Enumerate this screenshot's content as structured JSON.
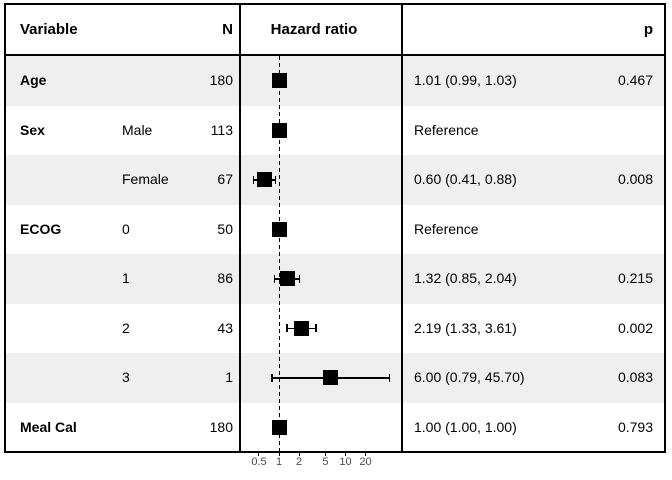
{
  "header": {
    "variable": "Variable",
    "n": "N",
    "hazard_ratio": "Hazard ratio",
    "p": "p"
  },
  "colors": {
    "stripe": "#EFEFEF",
    "box": "#000000",
    "line": "#000000",
    "border": "#000000",
    "axis_text": "#4D4D4D",
    "background": "#FFFFFF"
  },
  "chart_data": {
    "type": "forest",
    "title": "",
    "x_scale": "log",
    "reference_line": 1,
    "axis_ticks": [
      {
        "value": 0.5,
        "label": "0.5"
      },
      {
        "value": 1,
        "label": "1"
      },
      {
        "value": 2,
        "label": "2"
      },
      {
        "value": 5,
        "label": "5"
      },
      {
        "value": 10,
        "label": "10"
      },
      {
        "value": 20,
        "label": "20"
      }
    ],
    "rows": [
      {
        "variable": "Age",
        "level": "",
        "n": "180",
        "hr": 1.01,
        "ci_low": 0.99,
        "ci_high": 1.03,
        "reference": false,
        "estimate": "1.01 (0.99, 1.03)",
        "p": "0.467",
        "shaded": true
      },
      {
        "variable": "Sex",
        "level": "Male",
        "n": "113",
        "hr": 1.0,
        "ci_low": 1.0,
        "ci_high": 1.0,
        "reference": true,
        "estimate": "Reference",
        "p": "",
        "shaded": false
      },
      {
        "variable": "",
        "level": "Female",
        "n": "67",
        "hr": 0.6,
        "ci_low": 0.41,
        "ci_high": 0.88,
        "reference": false,
        "estimate": "0.60 (0.41, 0.88)",
        "p": "0.008",
        "shaded": true
      },
      {
        "variable": "ECOG",
        "level": "0",
        "n": "50",
        "hr": 1.0,
        "ci_low": 1.0,
        "ci_high": 1.0,
        "reference": true,
        "estimate": "Reference",
        "p": "",
        "shaded": false
      },
      {
        "variable": "",
        "level": "1",
        "n": "86",
        "hr": 1.32,
        "ci_low": 0.85,
        "ci_high": 2.04,
        "reference": false,
        "estimate": "1.32 (0.85, 2.04)",
        "p": "0.215",
        "shaded": true
      },
      {
        "variable": "",
        "level": "2",
        "n": "43",
        "hr": 2.19,
        "ci_low": 1.33,
        "ci_high": 3.61,
        "reference": false,
        "estimate": "2.19 (1.33, 3.61)",
        "p": "0.002",
        "shaded": false
      },
      {
        "variable": "",
        "level": "3",
        "n": "1",
        "hr": 6.0,
        "ci_low": 0.79,
        "ci_high": 45.7,
        "reference": false,
        "estimate": "6.00 (0.79, 45.70)",
        "p": "0.083",
        "shaded": true
      },
      {
        "variable": "Meal Cal",
        "level": "",
        "n": "180",
        "hr": 1.0,
        "ci_low": 1.0,
        "ci_high": 1.0,
        "reference": false,
        "estimate": "1.00 (1.00, 1.00)",
        "p": "0.793",
        "shaded": false
      }
    ]
  }
}
